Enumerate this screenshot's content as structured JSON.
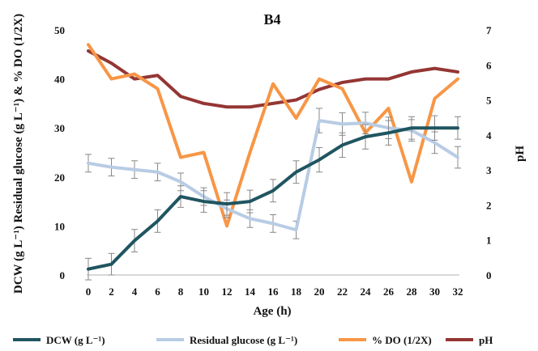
{
  "chart_data": {
    "type": "line",
    "title": "B4",
    "xlabel": "Age (h)",
    "ylabel_left": "DCW (g L⁻¹) Residual glucose (g L⁻¹) & % DO (1/2X)",
    "ylabel_right": "pH",
    "x": [
      0,
      2,
      4,
      6,
      8,
      10,
      12,
      14,
      16,
      18,
      20,
      22,
      24,
      26,
      28,
      30,
      32
    ],
    "ylim_left": [
      0,
      50
    ],
    "ylim_right": [
      0,
      7
    ],
    "yticks_left": [
      0,
      10,
      20,
      30,
      40,
      50
    ],
    "yticks_right": [
      0,
      1,
      2,
      3,
      4,
      5,
      6,
      7
    ],
    "series": [
      {
        "name": "DCW  (g L⁻¹)",
        "axis": "left",
        "color": "#1f5560",
        "values": [
          1.2,
          2.2,
          7.0,
          11.0,
          16.0,
          15.0,
          14.5,
          15.0,
          17.2,
          21.0,
          23.5,
          26.5,
          28.2,
          29.0,
          30.0,
          30.0,
          30.0
        ],
        "error": [
          2.2,
          2.2,
          2.3,
          2.3,
          2.2,
          2.2,
          2.3,
          2.3,
          2.3,
          2.3,
          2.5,
          2.5,
          2.5,
          2.5,
          2.3,
          2.5,
          2.3
        ]
      },
      {
        "name": "Residual glucose  (g L⁻¹)",
        "axis": "left",
        "color": "#b8cce4",
        "values": [
          22.8,
          22.0,
          21.5,
          21.0,
          19.0,
          16.0,
          13.5,
          11.5,
          10.5,
          9.2,
          31.5,
          30.8,
          31.0,
          30.0,
          29.5,
          27.0,
          24.0
        ],
        "error": [
          1.8,
          1.8,
          1.8,
          1.8,
          1.8,
          1.8,
          1.8,
          1.8,
          1.8,
          1.8,
          2.5,
          2.3,
          2.2,
          2.2,
          2.2,
          2.2,
          2.2
        ]
      },
      {
        "name": "% DO (1/2X)",
        "axis": "left",
        "color": "#f79646",
        "values": [
          47.0,
          40.0,
          41.0,
          38.0,
          24.0,
          25.0,
          10.0,
          25.0,
          39.0,
          32.0,
          40.0,
          38.0,
          29.0,
          34.0,
          19.0,
          36.0,
          40.0
        ]
      },
      {
        "name": "pH",
        "axis": "right",
        "color": "#943634",
        "values": [
          6.4,
          6.05,
          5.6,
          5.7,
          5.1,
          4.9,
          4.8,
          4.8,
          4.9,
          5.0,
          5.3,
          5.5,
          5.6,
          5.6,
          5.8,
          5.9,
          5.8
        ]
      }
    ],
    "legend_position": "bottom",
    "grid": false
  }
}
